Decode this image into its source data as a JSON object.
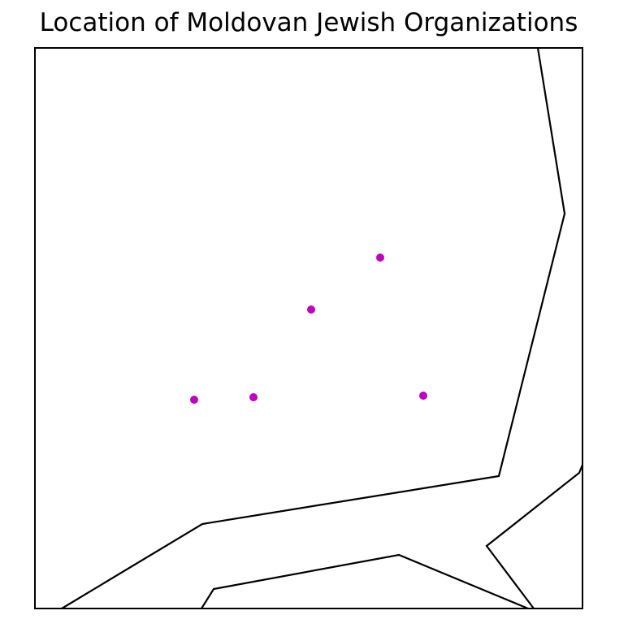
{
  "title": "Location of Moldovan Jewish Organizations",
  "colors": {
    "background": "#ffffff",
    "frame": "#000000",
    "border_lines": "#000000",
    "marker": "#bf00bf"
  },
  "map": {
    "marker_count": 5,
    "grid": false,
    "axis_ticks": false
  }
}
